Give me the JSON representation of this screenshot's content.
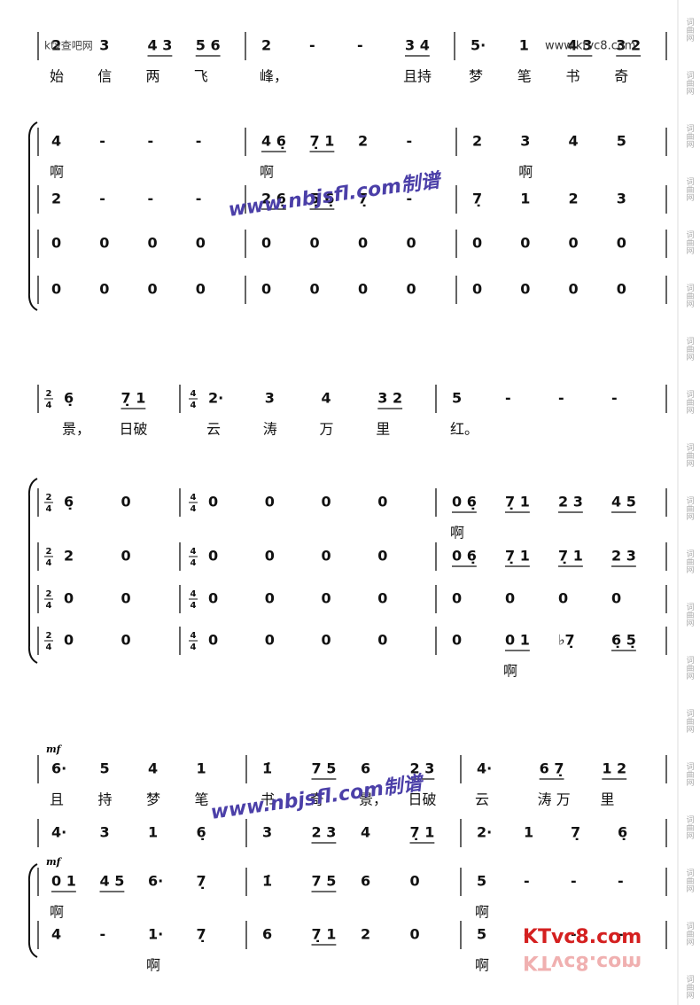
{
  "side_mark": "词曲网",
  "watermarks": {
    "site1": "ktv查吧网",
    "site2": "www.ktvc8.com",
    "maker": "www.nbjsfl.com制谱",
    "logo": "KTvc8.com"
  },
  "systems": [
    {
      "staves": [
        {
          "measures": [
            {
              "notes": [
                "2",
                "3",
                "4 3",
                "5 6"
              ],
              "lyrics": [
                "始",
                "信",
                "两",
                "飞"
              ]
            },
            {
              "notes": [
                "2",
                "-",
                "-",
                "3 4"
              ],
              "lyrics": [
                "峰，",
                null,
                null,
                "且持"
              ]
            },
            {
              "notes": [
                "5·",
                "1",
                "4 3",
                "3 2"
              ],
              "lyrics": [
                "梦",
                "笔",
                "书",
                "奇"
              ]
            }
          ]
        }
      ]
    },
    {
      "staves": [
        {
          "measures": [
            {
              "notes": [
                "4",
                "-",
                "-",
                "-"
              ],
              "lyrics": [
                "啊",
                null,
                null,
                null
              ]
            },
            {
              "notes": [
                "4 6̣",
                "7̣ 1",
                "2",
                "-"
              ],
              "lyrics": [
                "啊",
                null,
                null,
                null
              ]
            },
            {
              "notes": [
                "2",
                "3",
                "4",
                "5"
              ],
              "lyrics": [
                null,
                "啊",
                null,
                null
              ]
            }
          ]
        },
        {
          "measures": [
            {
              "notes": [
                "2",
                "-",
                "-",
                "-"
              ]
            },
            {
              "notes": [
                "2 6̣",
                "5̣ 6̣",
                "7̣",
                "-"
              ]
            },
            {
              "notes": [
                "7̣",
                "1",
                "2",
                "3"
              ]
            }
          ]
        },
        {
          "measures": [
            {
              "notes": [
                "0",
                "0",
                "0",
                "0"
              ]
            },
            {
              "notes": [
                "0",
                "0",
                "0",
                "0"
              ]
            },
            {
              "notes": [
                "0",
                "0",
                "0",
                "0"
              ]
            }
          ]
        },
        {
          "measures": [
            {
              "notes": [
                "0",
                "0",
                "0",
                "0"
              ]
            },
            {
              "notes": [
                "0",
                "0",
                "0",
                "0"
              ]
            },
            {
              "notes": [
                "0",
                "0",
                "0",
                "0"
              ]
            }
          ]
        }
      ]
    },
    {
      "staves": [
        {
          "measures": [
            {
              "time": [
                "2",
                "4"
              ],
              "notes": [
                "6̣",
                "7̣ 1"
              ],
              "lyrics": [
                "景，",
                "日破"
              ]
            },
            {
              "time": [
                "4",
                "4"
              ],
              "notes": [
                "2·",
                "3",
                "4",
                "3 2"
              ],
              "lyrics": [
                "云",
                "涛",
                "万",
                "里"
              ]
            },
            {
              "notes": [
                "5",
                "-",
                "-",
                "-"
              ],
              "lyrics": [
                "红。",
                null,
                null,
                null
              ]
            }
          ]
        }
      ]
    },
    {
      "staves": [
        {
          "measures": [
            {
              "time": [
                "2",
                "4"
              ],
              "notes": [
                "6̣",
                "0"
              ]
            },
            {
              "time": [
                "4",
                "4"
              ],
              "notes": [
                "0",
                "0",
                "0",
                "0"
              ]
            },
            {
              "notes": [
                "0 6̣",
                "7̣ 1",
                "2 3",
                "4 5"
              ],
              "lyrics": [
                "啊",
                null,
                null,
                null
              ]
            }
          ]
        },
        {
          "measures": [
            {
              "time": [
                "2",
                "4"
              ],
              "notes": [
                "2",
                "0"
              ]
            },
            {
              "time": [
                "4",
                "4"
              ],
              "notes": [
                "0",
                "0",
                "0",
                "0"
              ]
            },
            {
              "notes": [
                "0 6̣",
                "7̣ 1",
                "7̣ 1",
                "2 3"
              ]
            }
          ]
        },
        {
          "measures": [
            {
              "time": [
                "2",
                "4"
              ],
              "notes": [
                "0",
                "0"
              ]
            },
            {
              "time": [
                "4",
                "4"
              ],
              "notes": [
                "0",
                "0",
                "0",
                "0"
              ]
            },
            {
              "notes": [
                "0",
                "0",
                "0",
                "0"
              ]
            }
          ]
        },
        {
          "measures": [
            {
              "time": [
                "2",
                "4"
              ],
              "notes": [
                "0",
                "0"
              ]
            },
            {
              "time": [
                "4",
                "4"
              ],
              "notes": [
                "0",
                "0",
                "0",
                "0"
              ]
            },
            {
              "notes": [
                "0",
                "0 1",
                "♭7̣",
                "6̣ 5̣"
              ],
              "lyrics": [
                null,
                "啊",
                null,
                null
              ]
            }
          ]
        }
      ]
    },
    {
      "staves": [
        {
          "dynamic": "mf",
          "measures": [
            {
              "notes": [
                "6·",
                "5",
                "4",
                "1"
              ],
              "lyrics": [
                "且",
                "持",
                "梦",
                "笔"
              ]
            },
            {
              "notes": [
                "1̇",
                "7 5",
                "6",
                "2 3"
              ],
              "lyrics": [
                "书",
                "奇",
                "景，",
                "日破"
              ]
            },
            {
              "notes": [
                "4·",
                "6 7̣",
                "1 2"
              ],
              "lyrics": [
                "云",
                "涛 万",
                "里"
              ]
            }
          ]
        },
        {
          "measures": [
            {
              "notes": [
                "4·",
                "3",
                "1",
                "6̣"
              ]
            },
            {
              "notes": [
                "3",
                "2 3",
                "4",
                "7̣ 1"
              ]
            },
            {
              "notes": [
                "2·",
                "1",
                "7̣",
                "6̣"
              ]
            }
          ]
        },
        {
          "dynamic": "mf",
          "measures": [
            {
              "notes": [
                "0 1",
                "4 5",
                "6·",
                "7̣"
              ],
              "lyrics": [
                "啊",
                null,
                null,
                null
              ]
            },
            {
              "notes": [
                "1̇",
                "7 5",
                "6",
                "0"
              ]
            },
            {
              "notes": [
                "5",
                "-",
                "-",
                "-"
              ],
              "lyrics": [
                "啊",
                null,
                null,
                null
              ]
            }
          ]
        },
        {
          "measures": [
            {
              "notes": [
                "4",
                "-",
                "1·",
                "7̣"
              ],
              "lyrics": [
                null,
                null,
                "啊",
                null
              ]
            },
            {
              "notes": [
                "6",
                "7̣ 1",
                "2",
                "0"
              ]
            },
            {
              "notes": [
                "5",
                "-",
                "-",
                "-"
              ],
              "lyrics": [
                "啊",
                null,
                null,
                null
              ]
            }
          ]
        }
      ]
    }
  ]
}
